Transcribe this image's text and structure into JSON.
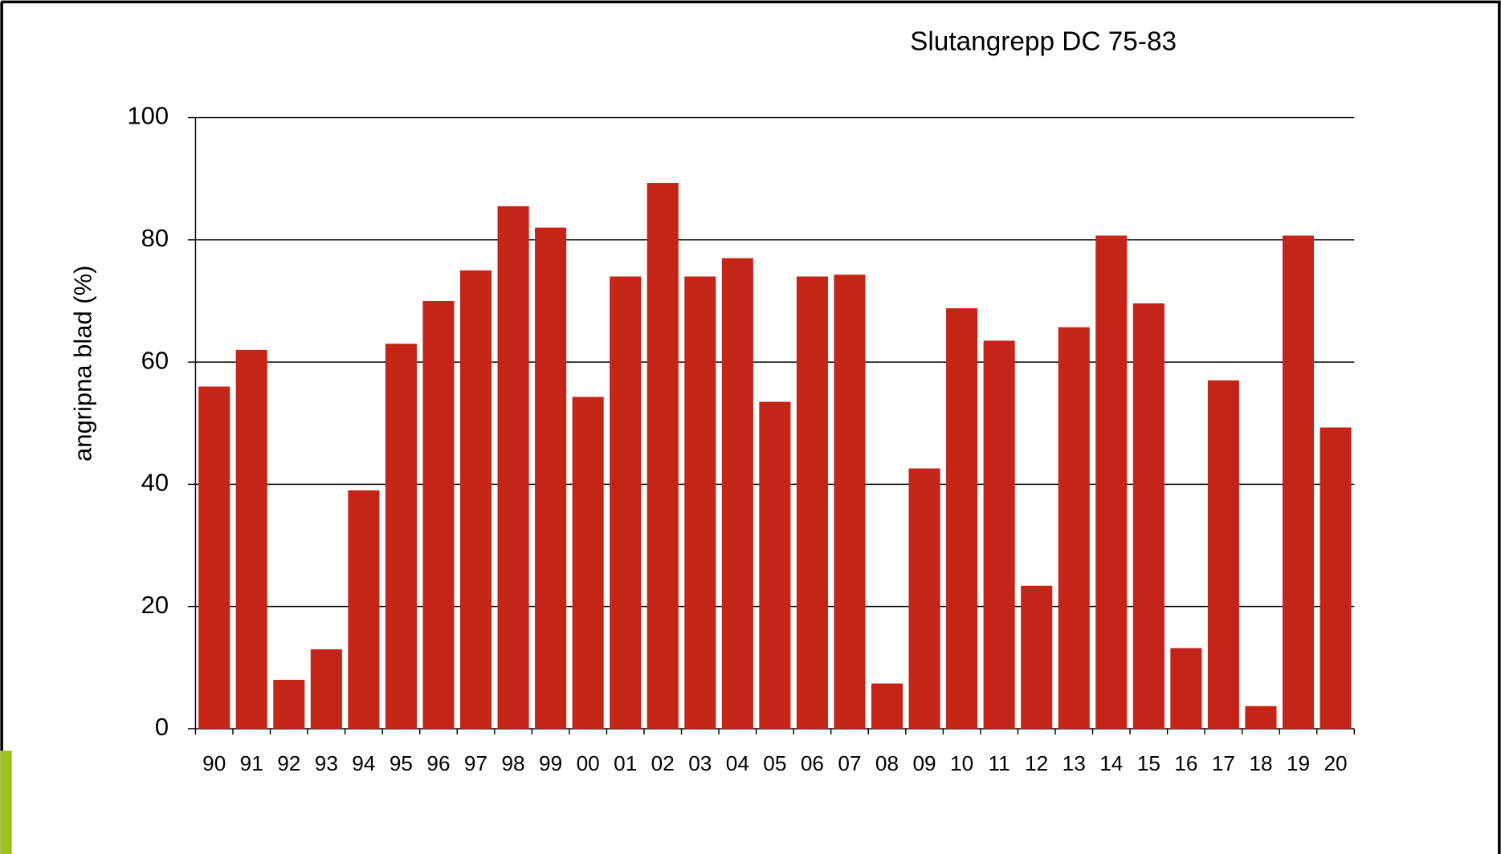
{
  "chart_data": {
    "type": "bar",
    "title": "Slutangrepp DC 75-83",
    "y_label": "angripna blad  (%)",
    "categories": [
      "90",
      "91",
      "92",
      "93",
      "94",
      "95",
      "96",
      "97",
      "98",
      "99",
      "00",
      "01",
      "02",
      "03",
      "04",
      "05",
      "06",
      "07",
      "08",
      "09",
      "10",
      "11",
      "12",
      "13",
      "14",
      "15",
      "16",
      "17",
      "18",
      "19",
      "20"
    ],
    "values": [
      56,
      62,
      8,
      13,
      39,
      63,
      70,
      75,
      85.5,
      82,
      54.3,
      74,
      89.3,
      74,
      77,
      53.5,
      74,
      74.3,
      7.4,
      42.6,
      68.8,
      63.5,
      23.4,
      65.7,
      80.7,
      69.6,
      13.2,
      57,
      3.7,
      80.7,
      49.3
    ],
    "color": "#c42518",
    "ylim": [
      0,
      100
    ],
    "yticks": [
      0,
      20,
      40,
      60,
      80,
      100
    ],
    "grid": true
  }
}
